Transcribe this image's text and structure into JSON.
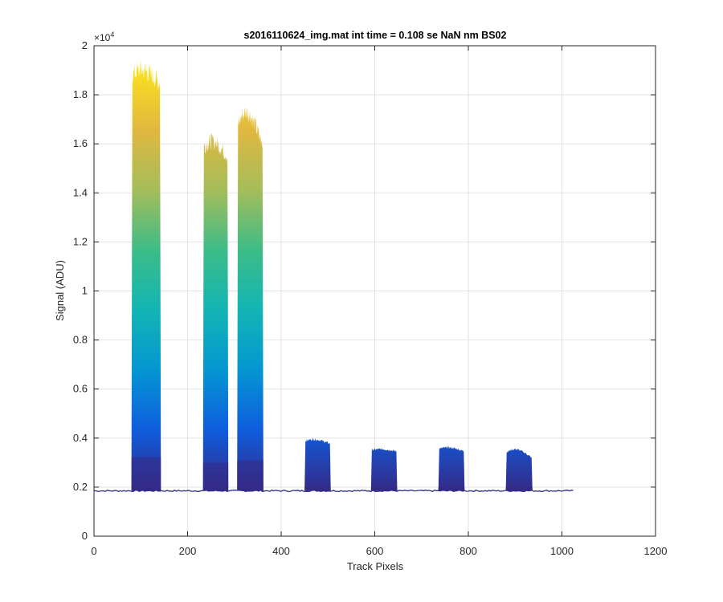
{
  "chart_data": {
    "type": "area",
    "title": "s2016110624_img.mat int time = 0.108 se  NaN nm BS02",
    "xlabel": "Track Pixels",
    "ylabel": "Signal (ADU)",
    "xlim": [
      0,
      1200
    ],
    "ylim": [
      0,
      20000
    ],
    "y_exponent_base": "×10",
    "y_exponent_power": "4",
    "x_ticks": [
      0,
      200,
      400,
      600,
      800,
      1000,
      1200
    ],
    "x_tick_labels": [
      "0",
      "200",
      "400",
      "600",
      "800",
      "1000",
      "1200"
    ],
    "y_ticks": [
      0,
      2000,
      4000,
      6000,
      8000,
      10000,
      12000,
      14000,
      16000,
      18000,
      20000
    ],
    "y_tick_labels": [
      "0",
      "0.2",
      "0.4",
      "0.6",
      "0.8",
      "1",
      "1.2",
      "1.4",
      "1.6",
      "1.8",
      "2"
    ],
    "grid": true,
    "colormap": "parula",
    "colormap_stops": [
      "#352a87",
      "#0f5cdd",
      "#0496d2",
      "#12b5b4",
      "#3cbc88",
      "#a4bd5a",
      "#e0b840",
      "#f9e01f"
    ],
    "baseline": 1850,
    "x_max": 1024,
    "bands": [
      {
        "x_start": 80,
        "x_end": 143,
        "peak": 19000,
        "edge_low": 18400
      },
      {
        "x_start": 233,
        "x_end": 287,
        "peak": 16100,
        "edge_low": 15400
      },
      {
        "x_start": 306,
        "x_end": 362,
        "peak": 17300,
        "edge_low": 15700
      },
      {
        "x_start": 450,
        "x_end": 506,
        "peak": 3950,
        "edge_low": 3750
      },
      {
        "x_start": 592,
        "x_end": 648,
        "peak": 3550,
        "edge_low": 3450
      },
      {
        "x_start": 736,
        "x_end": 792,
        "peak": 3620,
        "edge_low": 3450
      },
      {
        "x_start": 880,
        "x_end": 937,
        "peak": 3550,
        "edge_low": 3150
      }
    ]
  }
}
